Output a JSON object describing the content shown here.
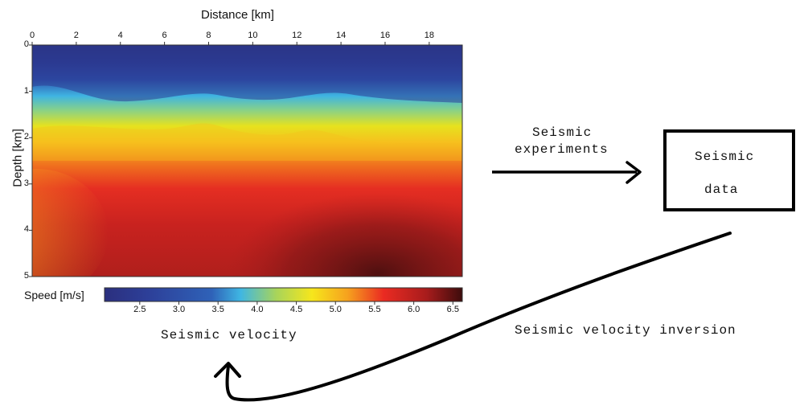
{
  "plot": {
    "x_axis_title": "Distance [km]",
    "y_axis_title": "Depth [km]",
    "x_ticks": [
      "0",
      "2",
      "4",
      "6",
      "8",
      "10",
      "12",
      "14",
      "16",
      "18"
    ],
    "y_ticks": [
      "0",
      "1",
      "2",
      "3",
      "4",
      "5"
    ]
  },
  "colorbar": {
    "label": "Speed [m/s]",
    "ticks": [
      "2.5",
      "3.0",
      "3.5",
      "4.0",
      "4.5",
      "5.0",
      "5.5",
      "6.0",
      "6.5"
    ]
  },
  "flow": {
    "seismic_velocity": "Seismic velocity",
    "experiments_line1": "Seismic",
    "experiments_line2": "experiments",
    "data_box_line1": "Seismic",
    "data_box_line2": "data",
    "inversion": "Seismic velocity inversion"
  },
  "colors": {
    "arrow": "#000000",
    "colormap": [
      "#2b2f7e",
      "#2d4fa8",
      "#3fb6e3",
      "#a8d45a",
      "#f6e61c",
      "#f6a11e",
      "#ea2b22",
      "#a81c1c",
      "#4a0f0f"
    ]
  }
}
